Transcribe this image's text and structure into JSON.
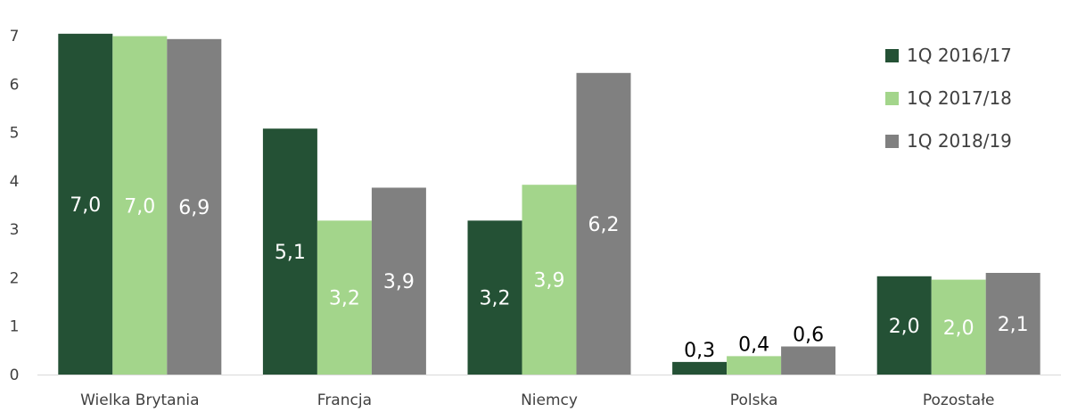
{
  "chart_data": {
    "type": "bar",
    "title": "",
    "xlabel": "",
    "ylabel": "",
    "ylim": [
      0,
      7
    ],
    "yticks": [
      "0",
      "1",
      "2",
      "3",
      "4",
      "5",
      "6",
      "7"
    ],
    "grid": false,
    "legend_position": "top-right",
    "categories": [
      "Wielka Brytania",
      "Francja",
      "Niemcy",
      "Polska",
      "Pozostałe"
    ],
    "series": [
      {
        "name": "1Q 2016/17",
        "color": "#245135",
        "values": [
          7.04,
          5.08,
          3.18,
          0.26,
          2.03
        ],
        "labels": [
          "7,0",
          "5,1",
          "3,2",
          "0,3",
          "2,0"
        ]
      },
      {
        "name": "1Q 2017/18",
        "color": "#a3d58b",
        "values": [
          6.99,
          3.18,
          3.92,
          0.38,
          1.96
        ],
        "labels": [
          "7,0",
          "3,2",
          "3,9",
          "0,4",
          "2,0"
        ]
      },
      {
        "name": "1Q 2018/19",
        "color": "#808080",
        "values": [
          6.93,
          3.86,
          6.23,
          0.58,
          2.1
        ],
        "labels": [
          "6,9",
          "3,9",
          "6,2",
          "0,6",
          "2,1"
        ]
      }
    ]
  }
}
